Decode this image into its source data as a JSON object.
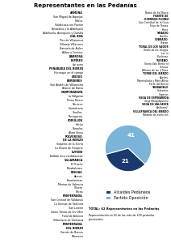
{
  "chart_data": [
    {
      "type": "list",
      "title": "Representantes en las Pedanías",
      "annotations": [
        "ARMUÑA",
        "San Miguel de Aquejas",
        "Holtcu",
        "Valdecasa con Puente",
        "Briadalva y la Aldehuela",
        "Aldehuela, Arenguero y Quinilla",
        "GAL BOA",
        "Pico de Villanueva",
        "Villarejo Villacurra",
        "Barruelo de Aviles",
        "Aldea y Cervera",
        "BARBOSA",
        "ESPÍREO",
        "de ayna",
        "PEÑABADA DEL BIERZO",
        "Hornaspe en el campo",
        "URDIGO",
        "BORRENES",
        "San Andrés de Villarrocha",
        "Alance de Barca",
        "CAMPONARAYA",
        "la Válgoma",
        "Peino Rivero",
        "Norueca",
        "Llantalcana",
        "Corullos",
        "Presigueros",
        "CORULLÓN",
        "Horúa",
        "Paraelos",
        "Alaro Viosa",
        "POLVOROSO\nDE LA BIERZO",
        "Solperos de la Sierra",
        "La Chana de Hospicio",
        "CUTEÑO",
        "Balbán Inca cordobanesa",
        "VILLAMANCA",
        "El Travño",
        "Parabalcions",
        "DEHEAS",
        "Aranes",
        "Enortúminas",
        "Mertan de Valencia",
        "Vilvera",
        "Recas",
        "PONFERRADA",
        "San Cristoal de Valdueza",
        "La Unesas de Valencia",
        "San Loreiro",
        "Santo Tomás de las Ollas",
        "Foral de Arlenza",
        "Villanueva de Valdueza",
        "PONFERRADA\nDEL BIERZO",
        "Sacrún de Barcas",
        "Ribaseca"
      ]
    },
    {
      "type": "list",
      "annotations": [
        "Nabia de Sol Barca",
        "FUENTE DE\nDOMINGO FLOREZ",
        "San Cristóbal de la Cova",
        "Frejo de Temes",
        "Herro",
        "SANADO",
        "Bustillo",
        "SOBRADO",
        "Otaran",
        "TORAL DE LOS VADOS",
        "Torallo de los abogos",
        "Lor m",
        "Piselanas",
        "TURIENO",
        "Santo Valo Bercio nt",
        "Soneva",
        "Alfonso de los 4 Toros",
        "TORRE DEL BIERZO",
        "Apeños",
        "Montealcota y Mato Allejo",
        "Parte del Bierzo",
        "TRABADELO",
        "Soteselos",
        "Soperun",
        "VEGA DE ESPINAREDA",
        "Vega Marquilpuerco",
        "VEGA DE VALCARCE",
        "Ambareal",
        "VILLAFRANCA DEL BIERZO",
        "Modalto de esercices"
      ]
    },
    {
      "type": "pie",
      "categories": [
        "Alcaldes Pedáneos",
        "Partido Oposición"
      ],
      "values": [
        21,
        41
      ],
      "colors": [
        "#1a3a6e",
        "#7ab4d8"
      ],
      "data_labels": true,
      "legend": "lower center",
      "annotations": [
        "TOTAL: 62 Representantes en las Pedanías",
        "Representación en 62 de las más de 100 pedanías provinciales"
      ]
    }
  ]
}
